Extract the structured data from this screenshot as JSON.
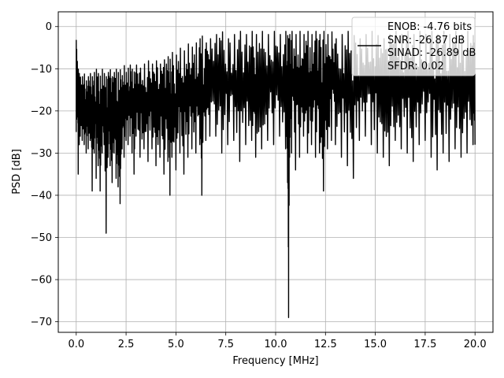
{
  "chart_data": {
    "type": "line",
    "title": "",
    "xlabel": "Frequency [MHz]",
    "ylabel": "PSD [dB]",
    "xlim": [
      -0.9,
      20.9
    ],
    "ylim": [
      -72.5,
      3.5
    ],
    "xticks": [
      0.0,
      2.5,
      5.0,
      7.5,
      10.0,
      12.5,
      15.0,
      17.5,
      20.0
    ],
    "xtick_labels": [
      "0.0",
      "2.5",
      "5.0",
      "7.5",
      "10.0",
      "12.5",
      "15.0",
      "17.5",
      "20.0"
    ],
    "yticks": [
      0,
      -10,
      -20,
      -30,
      -40,
      -50,
      -60,
      -70
    ],
    "ytick_labels": [
      "0",
      "−10",
      "−20",
      "−30",
      "−40",
      "−50",
      "−60",
      "−70"
    ],
    "grid": true,
    "legend_position": "top-right",
    "line_color": "#000000",
    "series": [
      {
        "x": [
          0.0,
          0.02,
          0.05,
          0.1,
          0.15,
          0.2,
          0.3,
          0.4,
          0.5,
          0.6,
          0.7,
          0.8,
          0.9,
          1.0,
          1.1,
          1.2,
          1.3,
          1.4,
          1.5,
          1.6,
          1.7,
          1.8,
          1.9,
          2.0,
          2.1,
          2.2,
          2.3,
          2.4,
          2.5,
          2.6,
          2.7,
          2.8,
          2.9,
          3.0,
          3.2,
          3.4,
          3.6,
          3.8,
          4.0,
          4.2,
          4.4,
          4.6,
          4.7,
          4.8,
          5.0,
          5.2,
          5.4,
          5.6,
          5.8,
          6.0,
          6.2,
          6.3,
          6.5,
          6.7,
          7.0,
          7.3,
          7.6,
          7.9,
          8.2,
          8.5,
          8.8,
          9.0,
          9.3,
          9.6,
          9.9,
          10.2,
          10.5,
          10.6,
          10.65,
          10.7,
          10.8,
          11.0,
          11.2,
          11.4,
          11.6,
          11.8,
          12.0,
          12.2,
          12.4,
          12.6,
          12.8,
          13.0,
          13.3,
          13.6,
          13.9,
          14.2,
          14.5,
          14.8,
          15.1,
          15.4,
          15.7,
          16.0,
          16.3,
          16.6,
          16.9,
          17.2,
          17.5,
          17.8,
          18.1,
          18.4,
          18.7,
          19.0,
          19.3,
          19.6,
          19.9,
          20.0
        ],
        "ymax": [
          -3,
          -5,
          -8,
          -10,
          -11,
          -12,
          -12,
          -11,
          -13,
          -12,
          -11,
          -12,
          -11,
          -10,
          -11,
          -12,
          -10,
          -11,
          -12,
          -11,
          -10,
          -12,
          -11,
          -10,
          -11,
          -10,
          -12,
          -9,
          -11,
          -10,
          -9,
          -10,
          -11,
          -9,
          -10,
          -9,
          -8,
          -9,
          -8,
          -9,
          -8,
          -7,
          -8,
          -6,
          -7,
          -5,
          -6,
          -4,
          -5,
          -4,
          -3,
          -2,
          -4,
          -3,
          -2,
          -1,
          -3,
          -2,
          -1,
          -2,
          -1,
          -2,
          -1,
          -2,
          -1,
          -2,
          -1,
          -2,
          -3,
          -2,
          -1,
          -2,
          -1,
          -2,
          -1,
          -2,
          -1,
          -2,
          -1,
          -2,
          -1,
          -3,
          -2,
          -1,
          -2,
          -3,
          -2,
          -1,
          -2,
          -3,
          -2,
          -1,
          -2,
          -1,
          -2,
          -1,
          -2,
          -1,
          -2,
          -1,
          -2,
          -1,
          -2,
          -1,
          -2,
          -3
        ],
        "ymin": [
          -25,
          -22,
          -20,
          -35,
          -28,
          -26,
          -27,
          -28,
          -30,
          -29,
          -27,
          -39,
          -30,
          -36,
          -33,
          -39,
          -30,
          -28,
          -49,
          -31,
          -33,
          -37,
          -30,
          -36,
          -38,
          -42,
          -29,
          -31,
          -27,
          -28,
          -26,
          -30,
          -35,
          -26,
          -31,
          -29,
          -32,
          -29,
          -33,
          -31,
          -35,
          -32,
          -40,
          -31,
          -34,
          -30,
          -35,
          -31,
          -29,
          -30,
          -28,
          -40,
          -27,
          -26,
          -26,
          -30,
          -28,
          -27,
          -32,
          -28,
          -27,
          -31,
          -29,
          -27,
          -28,
          -26,
          -29,
          -37,
          -69,
          -31,
          -30,
          -34,
          -31,
          -26,
          -30,
          -28,
          -31,
          -30,
          -39,
          -29,
          -27,
          -28,
          -31,
          -33,
          -36,
          -27,
          -26,
          -28,
          -30,
          -31,
          -33,
          -27,
          -29,
          -30,
          -32,
          -28,
          -27,
          -31,
          -34,
          -30,
          -32,
          -29,
          -31,
          -30,
          -28,
          -28
        ]
      }
    ],
    "legend_entries": [
      "ENOB: -4.76 bits",
      "SNR: -26.87 dB",
      "SINAD: -26.89 dB",
      "SFDR: 0.02"
    ]
  }
}
